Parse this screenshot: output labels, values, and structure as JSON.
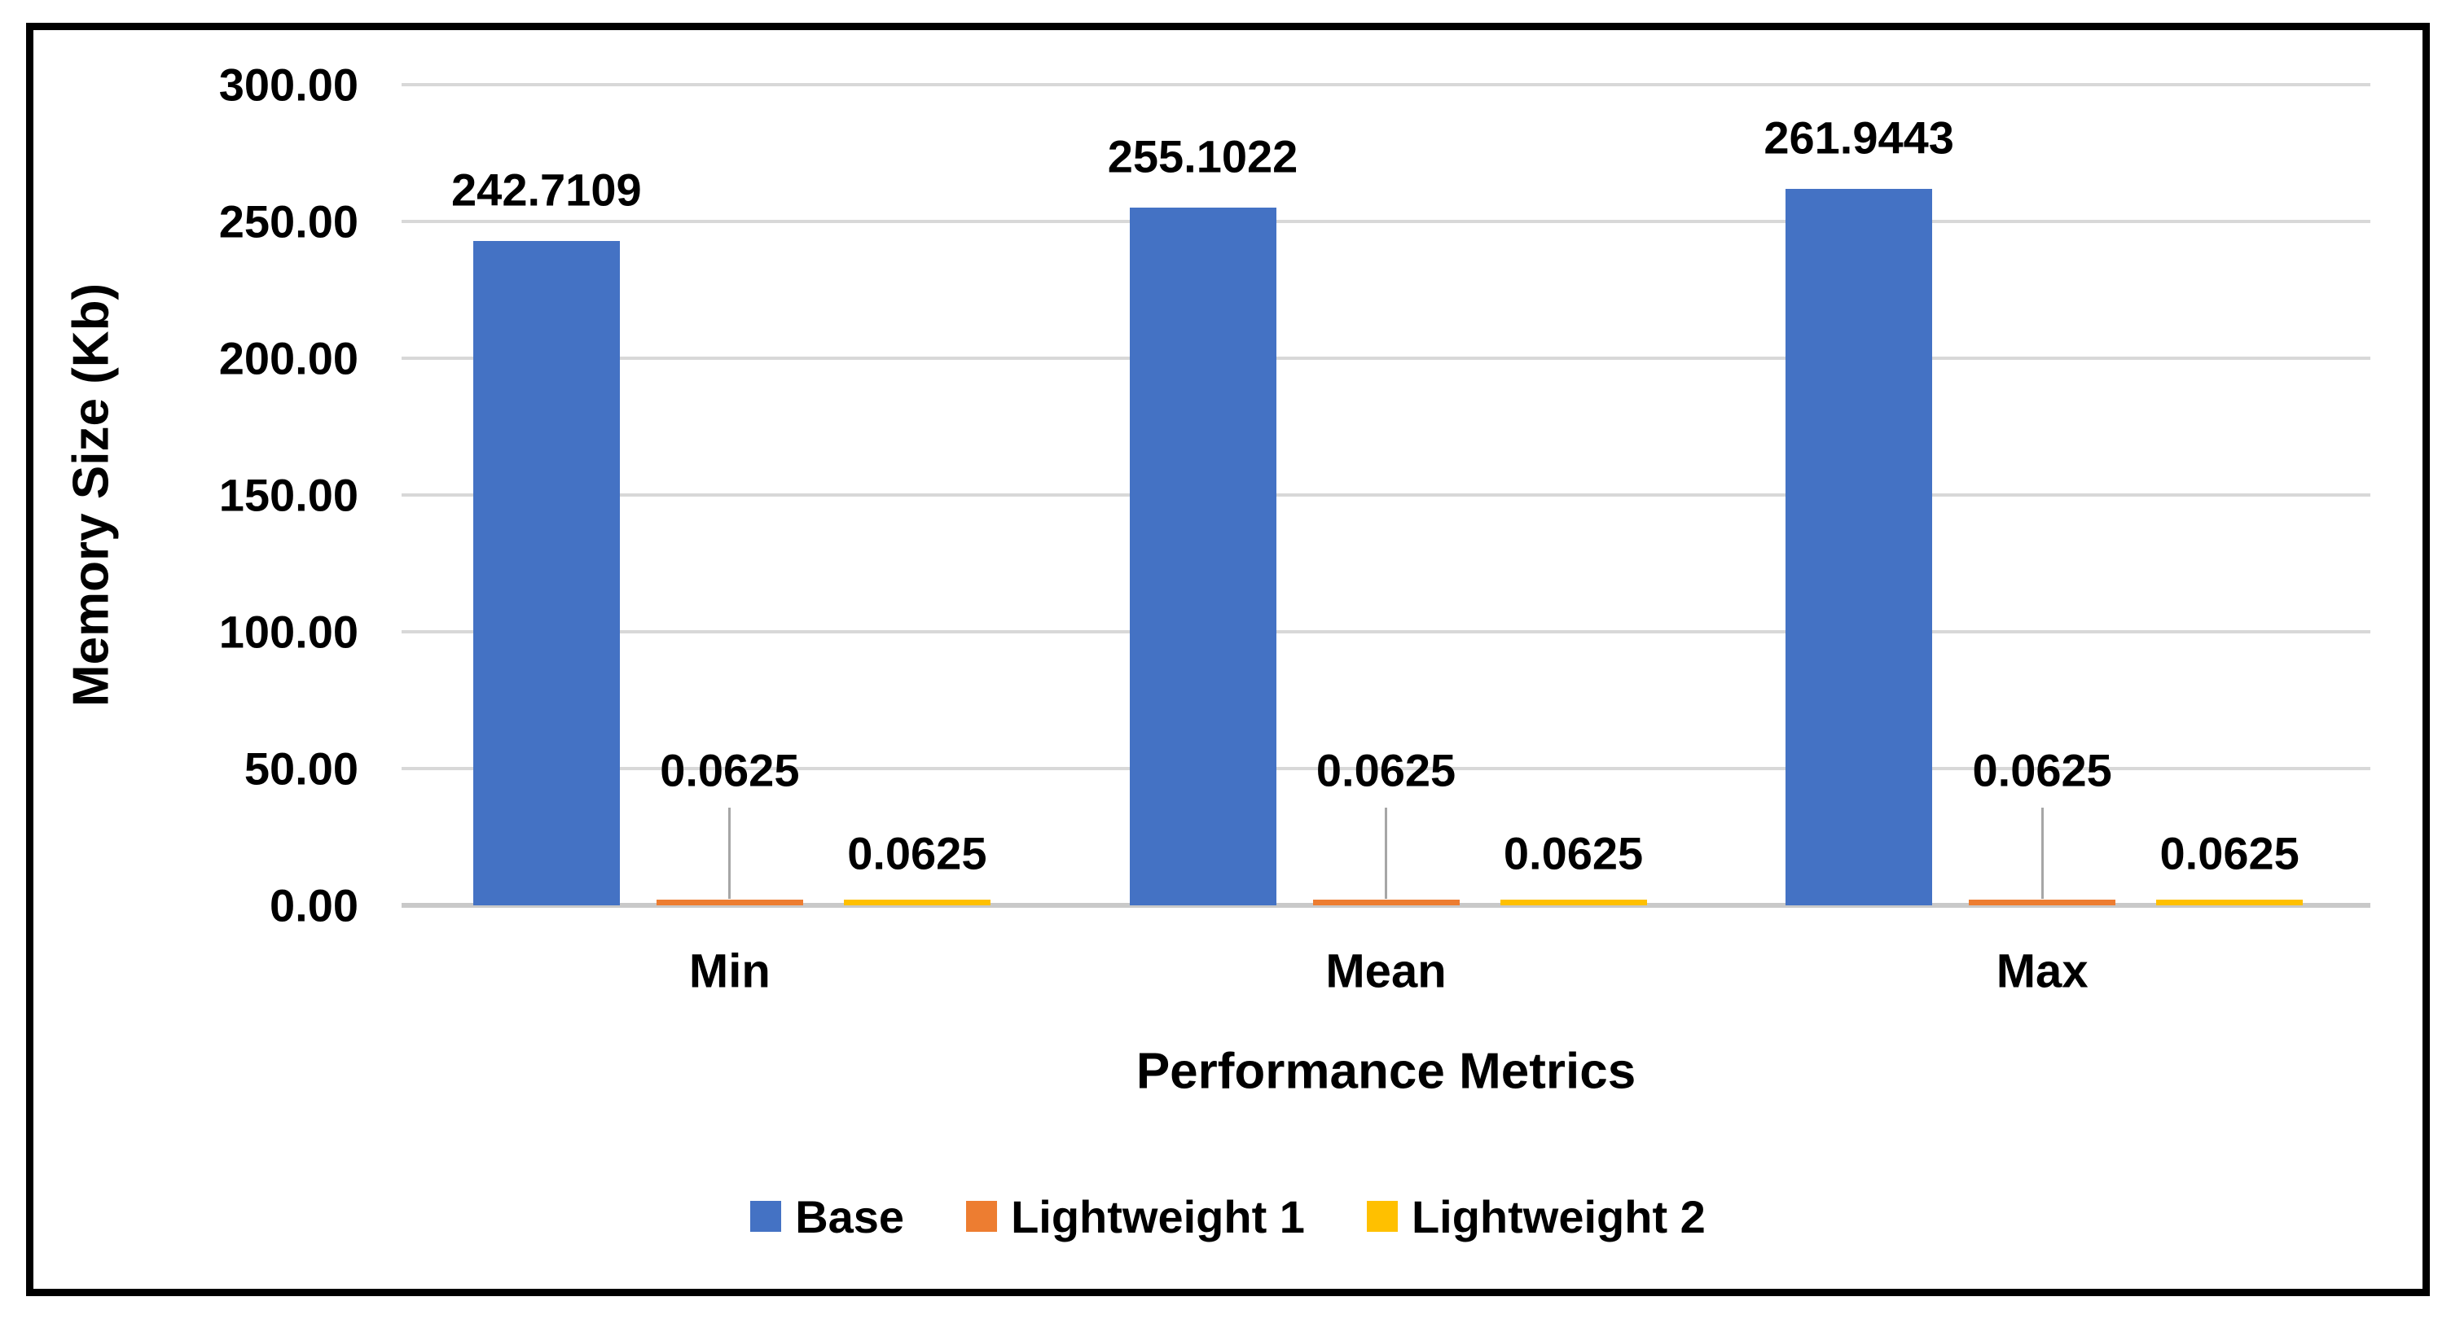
{
  "chart_data": {
    "type": "bar",
    "title": "",
    "categories": [
      "Min",
      "Mean",
      "Max"
    ],
    "series": [
      {
        "name": "Base",
        "color": "#4472C4",
        "values": [
          242.7109,
          255.1022,
          261.9443
        ],
        "labels": [
          "242.7109",
          "255.1022",
          "261.9443"
        ]
      },
      {
        "name": "Lightweight 1",
        "color": "#ED7D31",
        "values": [
          0.0625,
          0.0625,
          0.0625
        ],
        "labels": [
          "0.0625",
          "0.0625",
          "0.0625"
        ]
      },
      {
        "name": "Lightweight 2",
        "color": "#FFC000",
        "values": [
          0.0625,
          0.0625,
          0.0625
        ],
        "labels": [
          "0.0625",
          "0.0625",
          "0.0625"
        ]
      }
    ],
    "xlabel": "Performance Metrics",
    "ylabel": "Memory Size (Kb)",
    "ylim": [
      0,
      300
    ],
    "ytick_step": 50,
    "ytick_labels": [
      "0.00",
      "50.00",
      "100.00",
      "150.00",
      "200.00",
      "250.00",
      "300.00"
    ],
    "grid": true,
    "legend_position": "bottom",
    "data_labels_shown": true
  },
  "colors": {
    "background": "#FFFFFF",
    "frame_border": "#000000",
    "gridline": "#D8D8D8",
    "baseline": "#C9C9C9",
    "leader_line": "#A6A6A6",
    "text": "#000000"
  }
}
